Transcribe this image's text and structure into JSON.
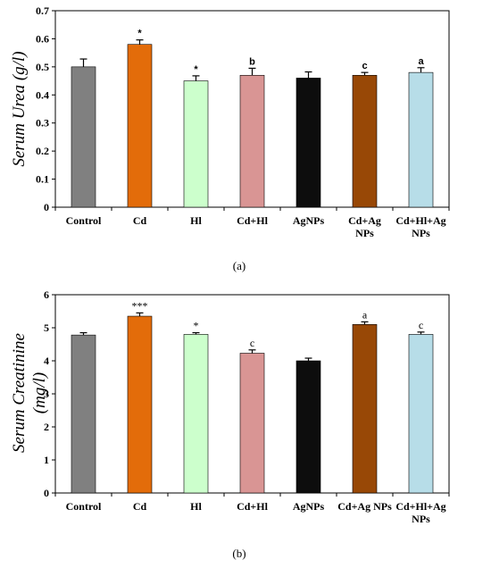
{
  "chart_data": [
    {
      "type": "bar",
      "panel_label": "(a)",
      "ylabel_parts": [
        "Serum  Urea  ",
        "(g/l)"
      ],
      "ylim": [
        0,
        0.7
      ],
      "yticks": [
        "0",
        "0.1",
        "0.2",
        "0.3",
        "0.4",
        "0.5",
        "0.6",
        "0.7"
      ],
      "categories": [
        [
          "Control"
        ],
        [
          "Cd"
        ],
        [
          "Hl"
        ],
        [
          "Cd+Hl"
        ],
        [
          "AgNPs"
        ],
        [
          "Cd+Ag",
          "NPs"
        ],
        [
          "Cd+Hl+Ag",
          "NPs"
        ]
      ],
      "values": [
        0.5,
        0.58,
        0.45,
        0.47,
        0.46,
        0.47,
        0.48
      ],
      "errors": [
        0.028,
        0.016,
        0.018,
        0.025,
        0.022,
        0.01,
        0.017
      ],
      "significance": [
        "",
        "*",
        "*",
        "b",
        "",
        "c",
        "a"
      ],
      "colors": [
        "#808080",
        "#e36c0a",
        "#ccffcc",
        "#d99594",
        "#0d0d0d",
        "#984806",
        "#b7dde8"
      ]
    },
    {
      "type": "bar",
      "panel_label": "(b)",
      "ylabel_parts": [
        "Serum  Creatinine",
        "(mg/l)"
      ],
      "ylim": [
        0,
        6
      ],
      "yticks": [
        "0",
        "1",
        "2",
        "3",
        "4",
        "5",
        "6"
      ],
      "categories": [
        [
          "Control"
        ],
        [
          "Cd"
        ],
        [
          "Hl"
        ],
        [
          "Cd+Hl"
        ],
        [
          "AgNPs"
        ],
        [
          "Cd+Ag NPs"
        ],
        [
          "Cd+Hl+Ag",
          "NPs"
        ]
      ],
      "values": [
        4.78,
        5.35,
        4.8,
        4.23,
        4.0,
        5.1,
        4.8
      ],
      "errors": [
        0.07,
        0.1,
        0.05,
        0.1,
        0.08,
        0.08,
        0.07
      ],
      "significance": [
        "",
        "***",
        "*",
        "c",
        "",
        "a",
        "c"
      ],
      "colors": [
        "#808080",
        "#e36c0a",
        "#ccffcc",
        "#d99594",
        "#0d0d0d",
        "#984806",
        "#b7dde8"
      ]
    }
  ]
}
